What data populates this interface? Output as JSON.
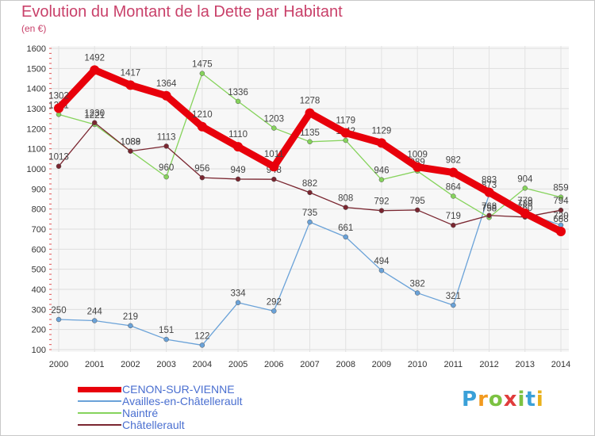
{
  "title": "Evolution du Montant de la Dette par Habitant",
  "subtitle": "(en €)",
  "brand": {
    "letters": [
      "P",
      "r",
      "o",
      "x",
      "i",
      "t",
      "i"
    ],
    "colors": [
      "#3aa0d8",
      "#f29a1f",
      "#7cc242",
      "#e03c3c",
      "#7cc242",
      "#3aa0d8",
      "#e9b11a"
    ]
  },
  "chart_data": {
    "type": "line",
    "xlabel": "",
    "ylabel": "",
    "x": [
      "2000",
      "2001",
      "2002",
      "2003",
      "2004",
      "2005",
      "2006",
      "2007",
      "2008",
      "2009",
      "2010",
      "2011",
      "2012",
      "2013",
      "2014"
    ],
    "ylim": [
      100,
      1600
    ],
    "yticks": [
      100,
      200,
      300,
      400,
      500,
      600,
      700,
      800,
      900,
      1000,
      1100,
      1200,
      1300,
      1400,
      1500,
      1600
    ],
    "grid": true,
    "legend": "bottom-left",
    "series": [
      {
        "name": "CENON-SUR-VIENNE",
        "color": "#e8000b",
        "values": [
          1302,
          1492,
          1417,
          1364,
          1210,
          1110,
          1011,
          1278,
          1179,
          1129,
          1009,
          982,
          883,
          779,
          688
        ]
      },
      {
        "name": "Availles-en-Châtellerault",
        "color": "#6aa2d8",
        "values": [
          250,
          244,
          219,
          151,
          122,
          334,
          292,
          735,
          661,
          494,
          382,
          321,
          873,
          780,
          720
        ]
      },
      {
        "name": "Naintré",
        "color": "#86d35c",
        "values": [
          1271,
          1221,
          1089,
          960,
          1475,
          1336,
          1203,
          1135,
          1142,
          946,
          989,
          864,
          758,
          904,
          859
        ]
      },
      {
        "name": "Châtellerault",
        "color": "#7a2630",
        "values": [
          1013,
          1230,
          1088,
          1113,
          956,
          949,
          948,
          882,
          808,
          792,
          795,
          719,
          768,
          760,
          794
        ]
      }
    ]
  }
}
